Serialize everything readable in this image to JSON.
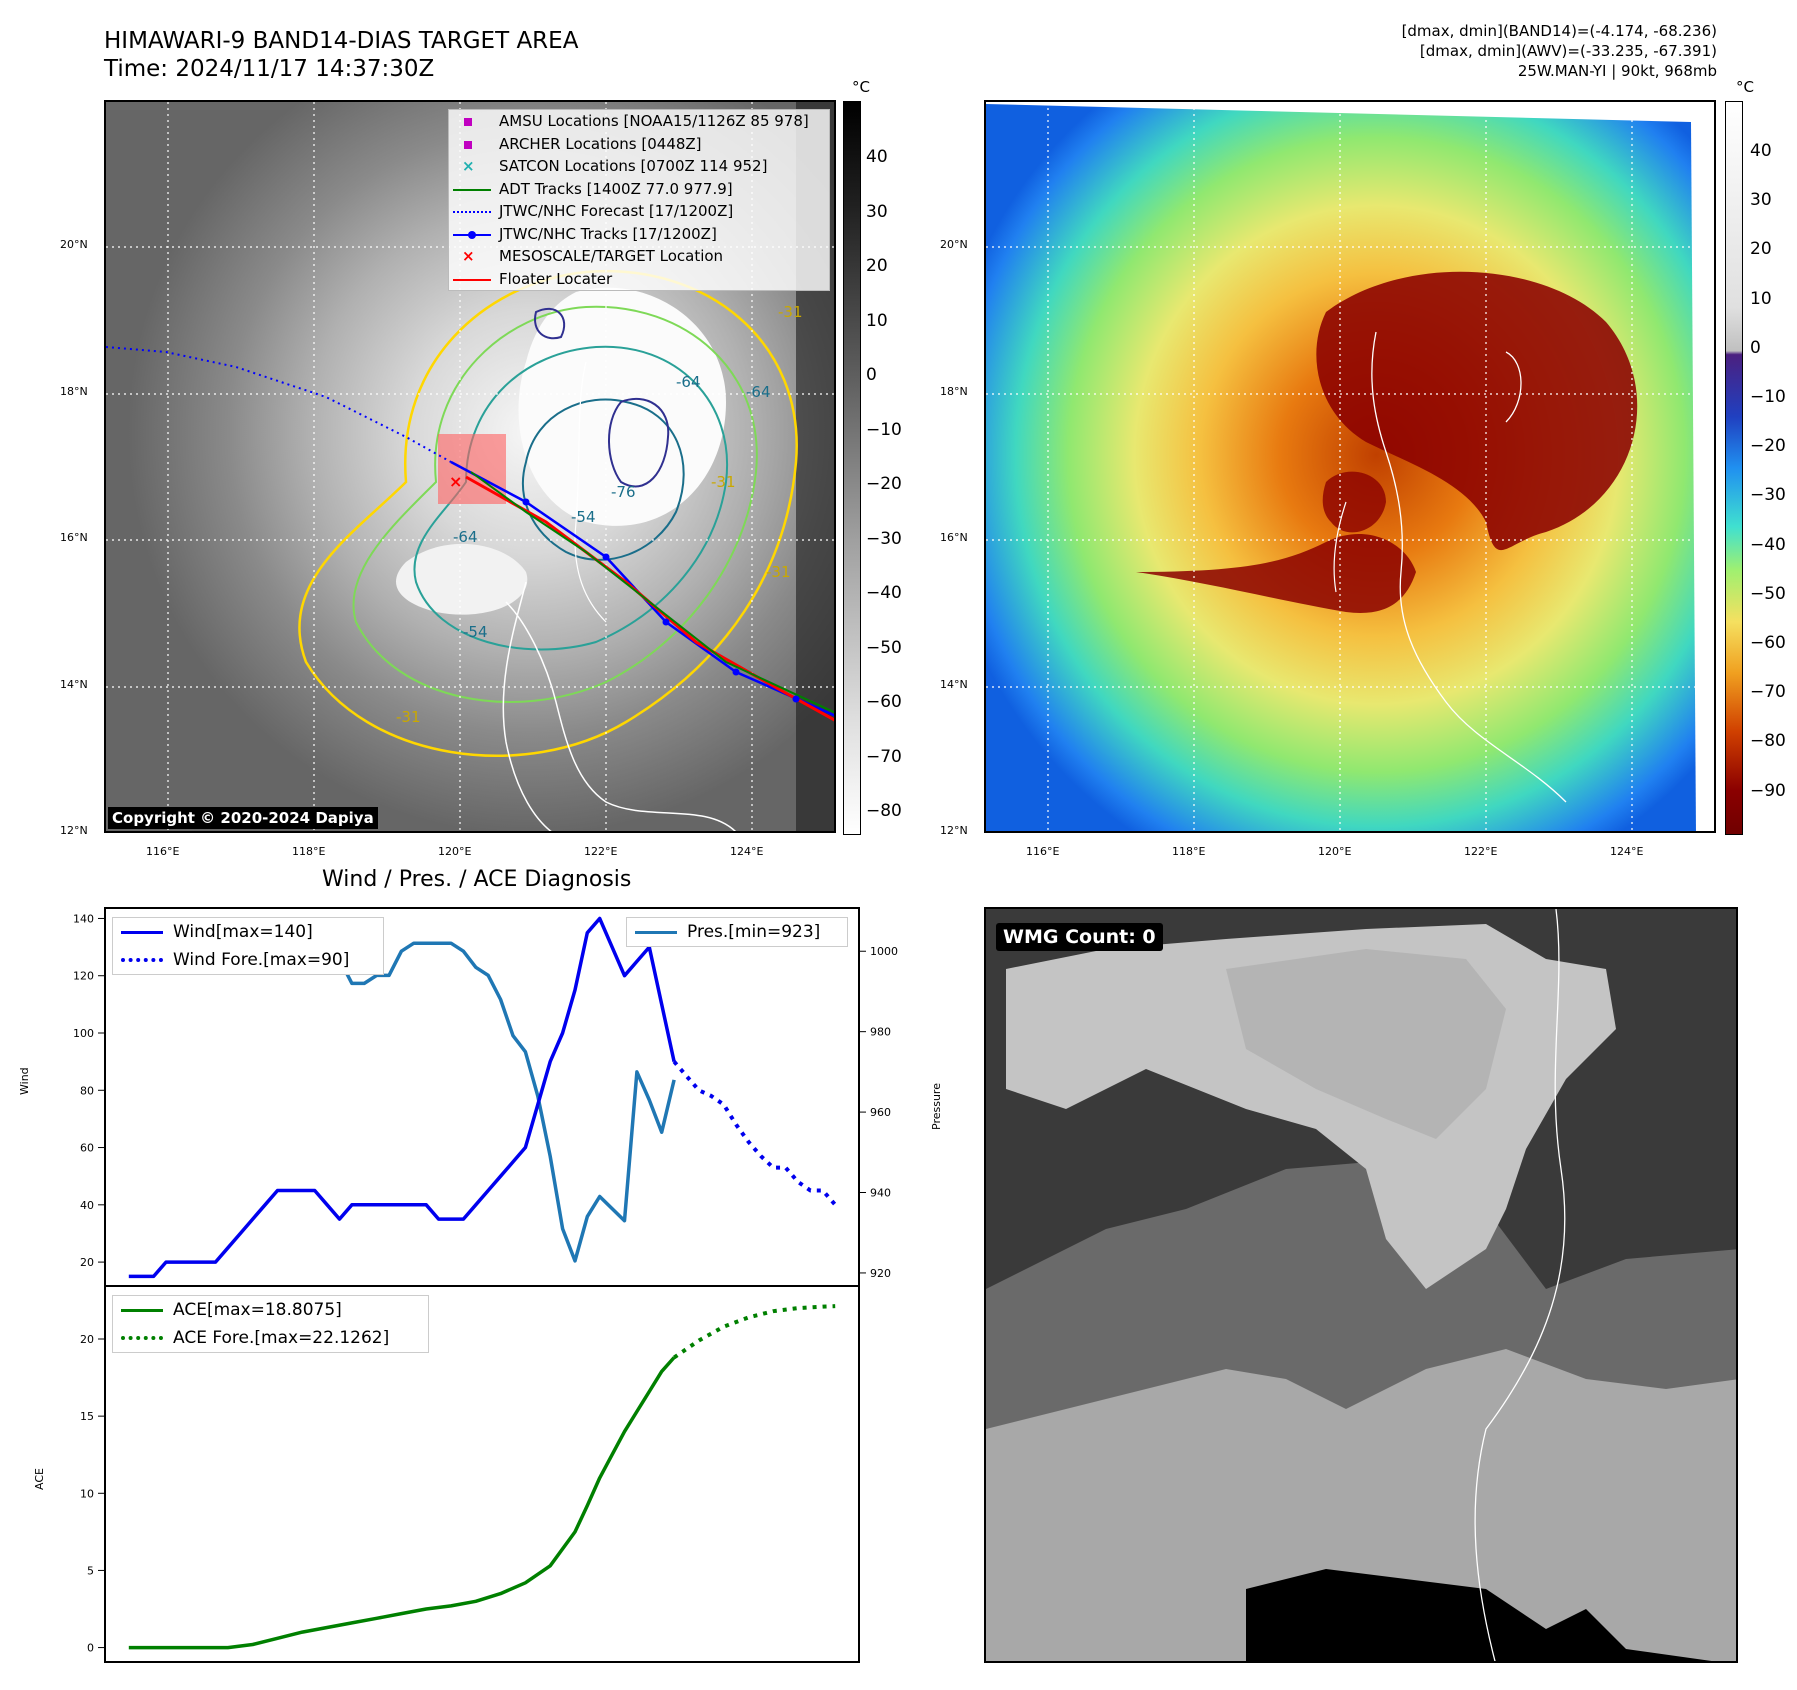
{
  "header": {
    "title_line1": "HIMAWARI-9 BAND14-DIAS TARGET AREA",
    "title_line2": "Time: 2024/11/17 14:37:30Z",
    "info_line1": "[dmax, dmin](BAND14)=(-4.174, -68.236)",
    "info_line2": "[dmax, dmin](AWV)=(-33.235, -67.391)",
    "info_line3": "25W.MAN-YI | 90kt, 968mb"
  },
  "colors": {
    "wind": "#0000ee",
    "pressure": "#1f77b4",
    "ace": "#008000",
    "track_red": "#ff0000",
    "forecast_blue": "#0000ff"
  },
  "map": {
    "lon_labels": [
      "116°E",
      "118°E",
      "120°E",
      "122°E",
      "124°E"
    ],
    "lat_labels": [
      "20°N",
      "18°N",
      "16°N",
      "14°N",
      "12°N"
    ],
    "copyright": "Copyright © 2020-2024 Dapiya",
    "legend": [
      {
        "label": "AMSU Locations [NOAA15/1126Z 85 978]",
        "icon": "square-marker",
        "color": "#c000c0"
      },
      {
        "label": "ARCHER Locations [0448Z]",
        "icon": "square-marker",
        "color": "#c000c0"
      },
      {
        "label": "SATCON Locations [0700Z 114 952]",
        "icon": "x-marker",
        "color": "#20b0b0"
      },
      {
        "label": "ADT Tracks [1400Z 77.0 977.9]",
        "icon": "line",
        "color": "#008000"
      },
      {
        "label": "JTWC/NHC Forecast [17/1200Z]",
        "icon": "dotted-line",
        "color": "#0000ff"
      },
      {
        "label": "JTWC/NHC Tracks [17/1200Z]",
        "icon": "line-dot",
        "color": "#0000ff"
      },
      {
        "label": "MESOSCALE/TARGET Location",
        "icon": "x-marker",
        "color": "#ff0000"
      },
      {
        "label": "Floater Locater",
        "icon": "line",
        "color": "#ff0000"
      }
    ],
    "contour_labels": [
      "-64",
      "-64",
      "-76",
      "-54",
      "-64",
      "-54",
      "-31",
      "-31",
      "-31",
      "-31"
    ],
    "colorbar_unit": "°C",
    "colorbar1_ticks": [
      "40",
      "30",
      "20",
      "10",
      "0",
      "−10",
      "−20",
      "−30",
      "−40",
      "−50",
      "−60",
      "−70",
      "−80"
    ],
    "colorbar2_ticks": [
      "40",
      "30",
      "20",
      "10",
      "0",
      "−10",
      "−20",
      "−30",
      "−40",
      "−50",
      "−60",
      "−70",
      "−80",
      "−90"
    ]
  },
  "diagnosis": {
    "title": "Wind / Pres. / ACE Diagnosis",
    "wind_ylabel": "Wind",
    "pressure_ylabel": "Pressure",
    "ace_ylabel": "ACE",
    "wind_ticks": [
      "20",
      "40",
      "60",
      "80",
      "100",
      "120",
      "140"
    ],
    "pressure_ticks": [
      "920",
      "940",
      "960",
      "980",
      "1000"
    ],
    "ace_ticks": [
      "0",
      "5",
      "10",
      "15",
      "20"
    ],
    "legend_wind": "Wind[max=140]",
    "legend_wind_fore": "Wind Fore.[max=90]",
    "legend_pres": "Pres.[min=923]",
    "legend_ace": "ACE[max=18.8075]",
    "legend_ace_fore": "ACE Fore.[max=22.1262]"
  },
  "wmg": {
    "label": "WMG Count: 0"
  },
  "chart_data": [
    {
      "type": "line",
      "title": "Wind / Pres. / ACE Diagnosis",
      "ylabel": "Wind",
      "ylim": [
        12,
        144
      ],
      "x": [
        0,
        1,
        2,
        3,
        4,
        5,
        6,
        7,
        8,
        9,
        10,
        11,
        12,
        13,
        14,
        15,
        16,
        17,
        18,
        19,
        20,
        21,
        22,
        23,
        24,
        25,
        26,
        27,
        28,
        29,
        30,
        31,
        32,
        33,
        34,
        35,
        36,
        37,
        38,
        39,
        40,
        41,
        42,
        43,
        44,
        45,
        46,
        47,
        48,
        49,
        50,
        51,
        52,
        53,
        54,
        55,
        56,
        57
      ],
      "series": [
        {
          "name": "Wind[max=140]",
          "x": [
            0,
            2,
            3,
            4,
            5,
            6,
            7,
            8,
            9,
            10,
            11,
            12,
            13,
            14,
            15,
            16,
            17,
            18,
            19,
            20,
            21,
            22,
            23,
            24,
            25,
            26,
            27,
            28,
            29,
            30,
            31,
            32,
            33,
            34,
            35,
            36,
            37,
            38,
            39,
            40,
            41,
            42,
            43,
            44
          ],
          "values": [
            15,
            15,
            20,
            20,
            20,
            20,
            20,
            25,
            30,
            35,
            40,
            45,
            45,
            45,
            45,
            40,
            35,
            40,
            40,
            40,
            40,
            40,
            40,
            40,
            35,
            35,
            35,
            40,
            45,
            50,
            55,
            60,
            75,
            90,
            100,
            115,
            135,
            140,
            130,
            120,
            125,
            130,
            110,
            90
          ]
        },
        {
          "name": "Wind Fore.[max=90]",
          "x": [
            44,
            45,
            46,
            47,
            48,
            49,
            50,
            51,
            52,
            53,
            54,
            55,
            56,
            57
          ],
          "values": [
            90,
            85,
            80,
            78,
            75,
            68,
            62,
            57,
            53,
            53,
            48,
            45,
            45,
            40
          ]
        }
      ]
    },
    {
      "type": "line",
      "ylabel": "Pressure",
      "ylim": [
        917,
        1011
      ],
      "series": [
        {
          "name": "Pres.[min=923]",
          "x": [
            0,
            2,
            3,
            4,
            5,
            6,
            7,
            8,
            9,
            10,
            11,
            12,
            13,
            14,
            15,
            16,
            17,
            18,
            19,
            20,
            21,
            22,
            23,
            24,
            25,
            26,
            27,
            28,
            29,
            30,
            31,
            32,
            33,
            34,
            35,
            36,
            37,
            38,
            39,
            40,
            41,
            42,
            43,
            44
          ],
          "values": [
            1008,
            1008,
            1005,
            1005,
            1004,
            1004,
            1002,
            1000,
            1000,
            996,
            996,
            995,
            995,
            997,
            998,
            998,
            998,
            992,
            992,
            994,
            994,
            1000,
            1002,
            1002,
            1002,
            1002,
            1000,
            996,
            994,
            988,
            979,
            975,
            964,
            949,
            931,
            923,
            934,
            939,
            936,
            933,
            970,
            963,
            955,
            968
          ]
        }
      ]
    },
    {
      "type": "line",
      "ylabel": "ACE",
      "ylim": [
        -1,
        23.5
      ],
      "series": [
        {
          "name": "ACE[max=18.8075]",
          "x": [
            0,
            2,
            4,
            6,
            8,
            10,
            12,
            14,
            16,
            18,
            20,
            22,
            24,
            26,
            28,
            30,
            32,
            34,
            36,
            37,
            38,
            39,
            40,
            41,
            42,
            43,
            44
          ],
          "values": [
            0,
            0,
            0,
            0,
            0,
            0.2,
            0.6,
            1.0,
            1.3,
            1.6,
            1.9,
            2.2,
            2.5,
            2.7,
            3.0,
            3.5,
            4.2,
            5.3,
            7.5,
            9.2,
            11,
            12.5,
            14,
            15.3,
            16.6,
            17.9,
            18.8
          ]
        },
        {
          "name": "ACE Fore.[max=22.1262]",
          "x": [
            44,
            46,
            48,
            50,
            52,
            54,
            56,
            57
          ],
          "values": [
            18.8,
            19.9,
            20.8,
            21.4,
            21.8,
            22.0,
            22.1,
            22.13
          ]
        }
      ]
    }
  ]
}
